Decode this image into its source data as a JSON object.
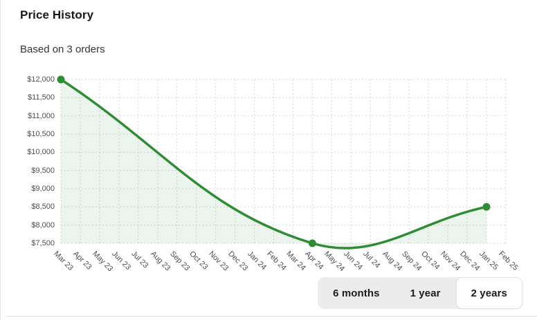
{
  "header": {
    "title": "Price History",
    "subtitle": "Based on 3 orders"
  },
  "chart_data": {
    "type": "line",
    "title": "Price History",
    "subtitle": "Based on 3 orders",
    "orders_count": 3,
    "x_categories": [
      "Mar 23",
      "Apr 23",
      "May 23",
      "Jun 23",
      "Jul 23",
      "Aug 23",
      "Sep 23",
      "Oct 23",
      "Nov 23",
      "Dec 23",
      "Jan 24",
      "Feb 24",
      "Mar 24",
      "Apr 24",
      "May 24",
      "Jun 24",
      "Jul 24",
      "Aug 24",
      "Sep 24",
      "Oct 24",
      "Nov 24",
      "Dec 24",
      "Jan 25",
      "Feb 25"
    ],
    "points": [
      {
        "month": "Mar 23",
        "price": 12000,
        "price_label": "$12,000"
      },
      {
        "month": "Apr 24",
        "price": 7500,
        "price_label": "$7,500"
      },
      {
        "month": "Jan 25",
        "price": 8500,
        "price_label": "$8,500"
      }
    ],
    "ylim": [
      7500,
      12000
    ],
    "ytick_step": 500,
    "ytick_labels_top_to_bottom": [
      "$12,000",
      "$11,500",
      "$11,000",
      "$10,500",
      "$10,000",
      "$9,500",
      "$9,000",
      "$8,500",
      "$8,000",
      "$7,500"
    ],
    "grid": "dotted",
    "curve": "cubic-spline tension 0.4",
    "legend": "none",
    "line_color": "#2f8c35",
    "fill_color": "rgba(47,140,53,0.09)",
    "marker_color": "#2f8c35"
  },
  "controls": {
    "range_options": [
      {
        "label": "6 months"
      },
      {
        "label": "1 year"
      },
      {
        "label": "2 years"
      }
    ],
    "selected": "2 years",
    "selected_index": 2
  },
  "colors": {
    "accent_green": "#2f8c35",
    "grid_line": "#d6d6d6",
    "axis_text": "#4d4d4d",
    "segment_bg": "#ececec",
    "segment_active_bg": "#ffffff",
    "segment_active_border": "#e2e2e2",
    "divider": "#e0e0e0"
  }
}
